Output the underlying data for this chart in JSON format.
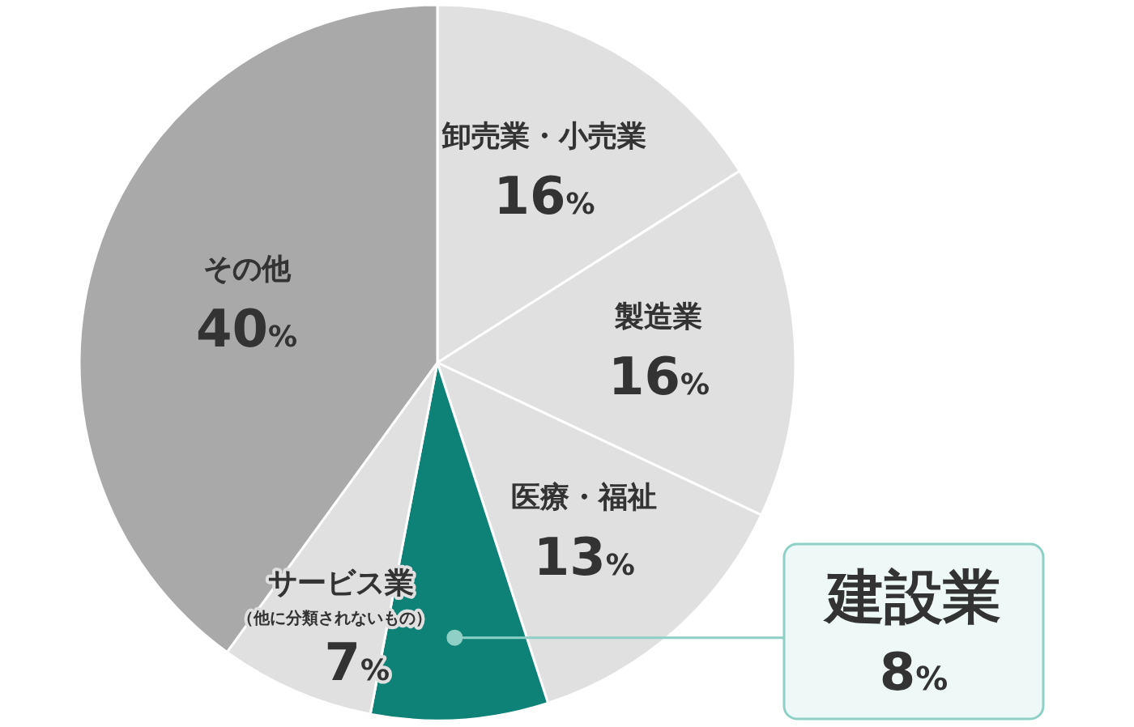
{
  "chart_data": {
    "type": "pie",
    "categories": [
      "卸売業・小売業",
      "製造業",
      "医療・福祉",
      "建設業",
      "サービス業",
      "その他"
    ],
    "values": [
      16,
      16,
      13,
      8,
      7,
      40
    ],
    "colors": [
      "#e0e0e0",
      "#e0e0e0",
      "#e0e0e0",
      "#0e8276",
      "#e0e0e0",
      "#a9a9a9"
    ],
    "value_labels": [
      "16%",
      "16%",
      "13%",
      "8%",
      "7%",
      "40%"
    ],
    "annotations": [
      "（他に分類されないもの）"
    ]
  }
}
